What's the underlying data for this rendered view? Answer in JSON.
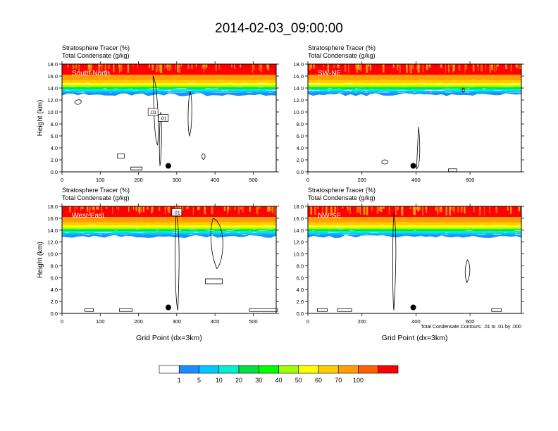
{
  "title": "2014-02-03_09:00:00",
  "footnote": "Total Condensate Contours: .01 to .01 by .000",
  "colorbar": {
    "ticks": [
      "1",
      "5",
      "10",
      "20",
      "30",
      "40",
      "50",
      "60",
      "70",
      "100"
    ],
    "colors": [
      "#ffffff",
      "#1e8cff",
      "#00c8ff",
      "#00f0d0",
      "#00e040",
      "#00ff00",
      "#a0ff00",
      "#ffff00",
      "#ffcc00",
      "#ffa000",
      "#ff6000",
      "#ff0000"
    ]
  },
  "chart_data": [
    {
      "type": "heatmap",
      "panel_label": "South-North",
      "left_string_1": "Stratosphere Tracer   (%)",
      "left_string_2": "Total Condensate   (g/kg)",
      "ylabel": "Height (km)",
      "xlabel": "",
      "xlim": [
        0,
        560
      ],
      "ylim": [
        0,
        18
      ],
      "xticks": [
        0,
        100,
        200,
        300,
        400,
        500
      ],
      "yticks": [
        "0.0",
        "2.0",
        "4.0",
        "6.0",
        "8.0",
        "10.0",
        "12.0",
        "14.0",
        "16.0",
        "18.0"
      ],
      "tracer_top_km": 16.0,
      "marker": {
        "x": 278,
        "y": 1.0
      },
      "contour_labels": [
        {
          "text": ".01",
          "x": 238,
          "y": 10.0
        },
        {
          "text": ".01",
          "x": 265,
          "y": 9.0
        }
      ]
    },
    {
      "type": "heatmap",
      "panel_label": "SW-NE",
      "left_string_1": "Stratosphere Tracer   (%)",
      "left_string_2": "Total Condensate   (g/kg)",
      "ylabel": "",
      "xlabel": "",
      "xlim": [
        0,
        790
      ],
      "ylim": [
        0,
        18
      ],
      "xticks": [
        0,
        200,
        400,
        600
      ],
      "yticks": [
        "0.0",
        "2.0",
        "4.0",
        "6.0",
        "8.0",
        "10.0",
        "12.0",
        "14.0",
        "16.0",
        "18.0"
      ],
      "tracer_top_km": 16.0,
      "marker": {
        "x": 390,
        "y": 1.0
      },
      "contour_labels": []
    },
    {
      "type": "heatmap",
      "panel_label": "West-East",
      "left_string_1": "Stratosphere Tracer   (%)",
      "left_string_2": "Total Condensate   (g/kg)",
      "ylabel": "Height (km)",
      "xlabel": "Grid Point (dx=3km)",
      "xlim": [
        0,
        560
      ],
      "ylim": [
        0,
        18
      ],
      "xticks": [
        0,
        100,
        200,
        300,
        400,
        500
      ],
      "yticks": [
        "0.0",
        "2.0",
        "4.0",
        "6.0",
        "8.0",
        "10.0",
        "12.0",
        "14.0",
        "16.0",
        "18.0"
      ],
      "tracer_top_km": 16.0,
      "marker": {
        "x": 278,
        "y": 1.0
      },
      "contour_labels": [
        {
          "text": ".01",
          "x": 300,
          "y": 17.0
        }
      ]
    },
    {
      "type": "heatmap",
      "panel_label": "NW-SE",
      "left_string_1": "Stratosphere Tracer   (%)",
      "left_string_2": "Total Condensate   (g/kg)",
      "ylabel": "",
      "xlabel": "Grid Point (dx=3km)",
      "xlim": [
        0,
        790
      ],
      "ylim": [
        0,
        18
      ],
      "xticks": [
        0,
        200,
        400,
        600
      ],
      "yticks": [
        "0.0",
        "2.0",
        "4.0",
        "6.0",
        "8.0",
        "10.0",
        "12.0",
        "14.0",
        "16.0",
        "18.0"
      ],
      "tracer_top_km": 16.0,
      "marker": {
        "x": 390,
        "y": 1.0
      },
      "contour_labels": []
    }
  ]
}
